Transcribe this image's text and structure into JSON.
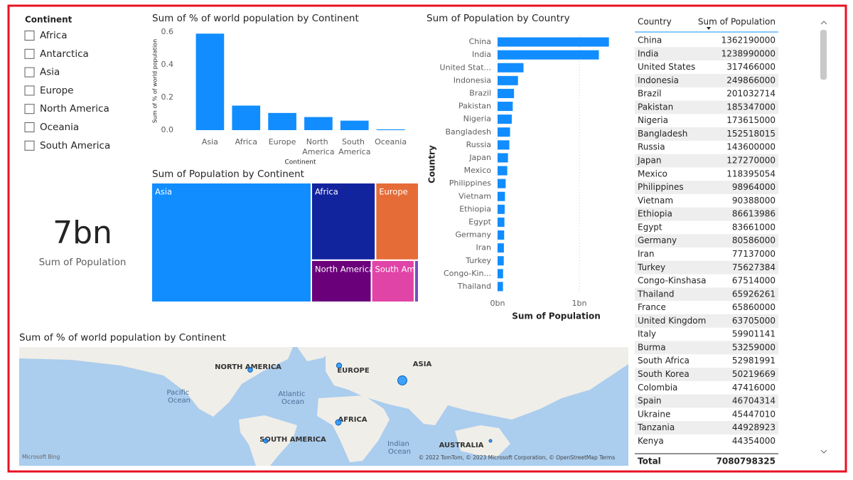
{
  "slicer": {
    "title": "Continent",
    "items": [
      "Africa",
      "Antarctica",
      "Asia",
      "Europe",
      "North America",
      "Oceania",
      "South America"
    ]
  },
  "card": {
    "value": "7bn",
    "label": "Sum of Population"
  },
  "chart_data": [
    {
      "type": "bar",
      "title": "Sum of % of world population by Continent",
      "categories": [
        "Asia",
        "Africa",
        "Europe",
        "North America",
        "South America",
        "Oceania"
      ],
      "values": [
        0.59,
        0.15,
        0.105,
        0.08,
        0.058,
        0.005
      ],
      "color": "#118DFF",
      "ylim": [
        0,
        0.6
      ],
      "yticks": [
        {
          "value": 0,
          "label": "0.0"
        },
        0.2,
        0.4,
        0.6
      ],
      "y_label": "Sum of % of world population",
      "x_label": "Continent",
      "grid": false
    },
    {
      "type": "treemap",
      "title": "Sum of Population by Continent",
      "categories": [
        "Asia",
        "Africa",
        "Europe",
        "North America",
        "South America",
        null
      ],
      "values": [
        4230000000,
        1100000000,
        740000000,
        560000000,
        400000000,
        40000000
      ],
      "colors": [
        "#118DFF",
        "#12239E",
        "#E66C37",
        "#6B007B",
        "#E044A7",
        "#744EC2"
      ]
    },
    {
      "type": "bar",
      "horizontal": true,
      "title": "Sum of Population by Country",
      "categories": [
        "China",
        "India",
        "United Stat...",
        "Indonesia",
        "Brazil",
        "Pakistan",
        "Nigeria",
        "Bangladesh",
        "Russia",
        "Japan",
        "Mexico",
        "Philippines",
        "Vietnam",
        "Ethiopia",
        "Egypt",
        "Germany",
        "Iran",
        "Turkey",
        "Congo-Kin...",
        "Thailand"
      ],
      "values": [
        1362190000,
        1238990000,
        317466000,
        249866000,
        201032714,
        185347000,
        173615000,
        152518015,
        143600000,
        127270000,
        118395054,
        98964000,
        90388000,
        86613986,
        83661000,
        80586000,
        77137000,
        75627384,
        67514000,
        65926261
      ],
      "color": "#118DFF",
      "xlim": [
        0,
        1400000000
      ],
      "xticks": [
        {
          "value": 0,
          "label": "0bn"
        },
        {
          "value": 1000000000,
          "label": "1bn"
        }
      ],
      "x_label": "Sum of Population",
      "y_label": "Country",
      "grid": true
    }
  ],
  "table": {
    "columns": [
      "Country",
      "Sum of Population"
    ],
    "rows": [
      [
        "China",
        1362190000
      ],
      [
        "India",
        1238990000
      ],
      [
        "United States",
        317466000
      ],
      [
        "Indonesia",
        249866000
      ],
      [
        "Brazil",
        201032714
      ],
      [
        "Pakistan",
        185347000
      ],
      [
        "Nigeria",
        173615000
      ],
      [
        "Bangladesh",
        152518015
      ],
      [
        "Russia",
        143600000
      ],
      [
        "Japan",
        127270000
      ],
      [
        "Mexico",
        118395054
      ],
      [
        "Philippines",
        98964000
      ],
      [
        "Vietnam",
        90388000
      ],
      [
        "Ethiopia",
        86613986
      ],
      [
        "Egypt",
        83661000
      ],
      [
        "Germany",
        80586000
      ],
      [
        "Iran",
        77137000
      ],
      [
        "Turkey",
        75627384
      ],
      [
        "Congo-Kinshasa",
        67514000
      ],
      [
        "Thailand",
        65926261
      ],
      [
        "France",
        65860000
      ],
      [
        "United Kingdom",
        63705000
      ],
      [
        "Italy",
        59901141
      ],
      [
        "Burma",
        53259000
      ],
      [
        "South Africa",
        52981991
      ],
      [
        "South Korea",
        50219669
      ],
      [
        "Colombia",
        47416000
      ],
      [
        "Spain",
        46704314
      ],
      [
        "Ukraine",
        45447010
      ],
      [
        "Tanzania",
        44928923
      ],
      [
        "Kenya",
        44354000
      ]
    ],
    "total": [
      "Total",
      7080798325
    ]
  },
  "map": {
    "title": "Sum of % of world population by Continent",
    "labels": [
      "NORTH AMERICA",
      "EUROPE",
      "ASIA",
      "AFRICA",
      "SOUTH AMERICA",
      "AUSTRALIA",
      "Pacific Ocean",
      "Atlantic Ocean",
      "Indian Ocean"
    ],
    "attribution": "Microsoft Bing",
    "copyright": "© 2022 TomTom, © 2023 Microsoft Corporation, © OpenStreetMap  Terms"
  }
}
